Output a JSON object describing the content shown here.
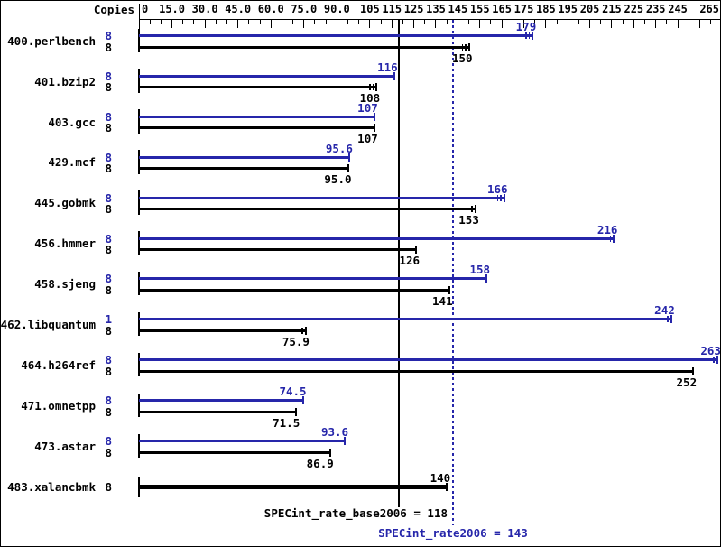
{
  "header": {
    "copies_label": "Copies"
  },
  "colors": {
    "peak_blue": "#2626aa",
    "base_black": "#000000",
    "background": "#ffffff"
  },
  "chart_data": {
    "type": "bar",
    "orientation": "horizontal",
    "title": "",
    "xlabel": "",
    "ylabel": "",
    "xlim": [
      0,
      265
    ],
    "minor_tick_step": 5,
    "grid": false,
    "x_ticks": [
      {
        "value": 0,
        "label": "0"
      },
      {
        "value": 15,
        "label": "15.0"
      },
      {
        "value": 30,
        "label": "30.0"
      },
      {
        "value": 45,
        "label": "45.0"
      },
      {
        "value": 60,
        "label": "60.0"
      },
      {
        "value": 75,
        "label": "75.0"
      },
      {
        "value": 90,
        "label": "90.0"
      },
      {
        "value": 105,
        "label": "105"
      },
      {
        "value": 115,
        "label": "115"
      },
      {
        "value": 125,
        "label": "125"
      },
      {
        "value": 135,
        "label": "135"
      },
      {
        "value": 145,
        "label": "145"
      },
      {
        "value": 155,
        "label": "155"
      },
      {
        "value": 165,
        "label": "165"
      },
      {
        "value": 175,
        "label": "175"
      },
      {
        "value": 185,
        "label": "185"
      },
      {
        "value": 195,
        "label": "195"
      },
      {
        "value": 205,
        "label": "205"
      },
      {
        "value": 215,
        "label": "215"
      },
      {
        "value": 225,
        "label": "225"
      },
      {
        "value": 235,
        "label": "235"
      },
      {
        "value": 245,
        "label": "245"
      },
      {
        "value": 265,
        "label": "265"
      }
    ],
    "benchmarks": [
      {
        "name": "400.perlbench",
        "peak": {
          "copies": "8",
          "value": 179,
          "label": "179",
          "run_marks": 2
        },
        "base": {
          "copies": "8",
          "value": 150,
          "label": "150",
          "run_marks": 2
        }
      },
      {
        "name": "401.bzip2",
        "peak": {
          "copies": "8",
          "value": 116,
          "label": "116",
          "run_marks": 0
        },
        "base": {
          "copies": "8",
          "value": 108,
          "label": "108",
          "run_marks": 2
        }
      },
      {
        "name": "403.gcc",
        "peak": {
          "copies": "8",
          "value": 107,
          "label": "107",
          "run_marks": 0
        },
        "base": {
          "copies": "8",
          "value": 107,
          "label": "107",
          "run_marks": 0
        }
      },
      {
        "name": "429.mcf",
        "peak": {
          "copies": "8",
          "value": 95.6,
          "label": "95.6",
          "run_marks": 0
        },
        "base": {
          "copies": "8",
          "value": 95.0,
          "label": "95.0",
          "run_marks": 0
        }
      },
      {
        "name": "445.gobmk",
        "peak": {
          "copies": "8",
          "value": 166,
          "label": "166",
          "run_marks": 2
        },
        "base": {
          "copies": "8",
          "value": 153,
          "label": "153",
          "run_marks": 1
        }
      },
      {
        "name": "456.hmmer",
        "peak": {
          "copies": "8",
          "value": 216,
          "label": "216",
          "run_marks": 1
        },
        "base": {
          "copies": "8",
          "value": 126,
          "label": "126",
          "run_marks": 0
        }
      },
      {
        "name": "458.sjeng",
        "peak": {
          "copies": "8",
          "value": 158,
          "label": "158",
          "run_marks": 0
        },
        "base": {
          "copies": "8",
          "value": 141,
          "label": "141",
          "run_marks": 0
        }
      },
      {
        "name": "462.libquantum",
        "peak": {
          "copies": "1",
          "value": 242,
          "label": "242",
          "run_marks": 1
        },
        "base": {
          "copies": "8",
          "value": 75.9,
          "label": "75.9",
          "run_marks": 1
        }
      },
      {
        "name": "464.h264ref",
        "peak": {
          "copies": "8",
          "value": 263,
          "label": "263",
          "run_marks": 1
        },
        "base": {
          "copies": "8",
          "value": 252,
          "label": "252",
          "run_marks": 0
        }
      },
      {
        "name": "471.omnetpp",
        "peak": {
          "copies": "8",
          "value": 74.5,
          "label": "74.5",
          "run_marks": 0
        },
        "base": {
          "copies": "8",
          "value": 71.5,
          "label": "71.5",
          "run_marks": 0
        }
      },
      {
        "name": "473.astar",
        "peak": {
          "copies": "8",
          "value": 93.6,
          "label": "93.6",
          "run_marks": 0
        },
        "base": {
          "copies": "8",
          "value": 86.9,
          "label": "86.9",
          "run_marks": 0
        }
      },
      {
        "name": "483.xalancbmk",
        "peak": null,
        "base": {
          "copies": "8",
          "value": 140,
          "label": "140",
          "run_marks": 0,
          "bold": true
        }
      }
    ],
    "reference_lines": [
      {
        "name": "base",
        "label": "SPECint_rate_base2006 = 118",
        "value": 118,
        "style": "solid",
        "color": "#000000"
      },
      {
        "name": "peak",
        "label": "SPECint_rate2006 = 143",
        "value": 143,
        "style": "dotted",
        "color": "#2626aa"
      }
    ]
  }
}
